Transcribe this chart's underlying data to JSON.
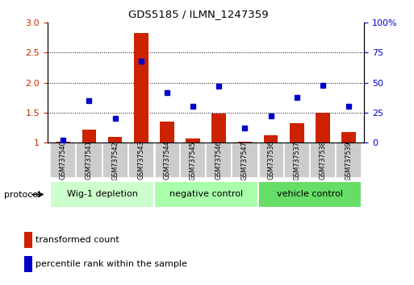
{
  "title": "GDS5185 / ILMN_1247359",
  "samples": [
    "GSM737540",
    "GSM737541",
    "GSM737542",
    "GSM737543",
    "GSM737544",
    "GSM737545",
    "GSM737546",
    "GSM737547",
    "GSM737536",
    "GSM737537",
    "GSM737538",
    "GSM737539"
  ],
  "transformed_count": [
    1.02,
    1.22,
    1.1,
    2.83,
    1.35,
    1.07,
    1.49,
    1.02,
    1.12,
    1.32,
    1.5,
    1.18
  ],
  "percentile_rank": [
    2,
    35,
    20,
    68,
    42,
    30,
    47,
    12,
    22,
    38,
    48,
    30
  ],
  "groups": [
    {
      "label": "Wig-1 depletion",
      "start": 0,
      "end": 4
    },
    {
      "label": "negative control",
      "start": 4,
      "end": 8
    },
    {
      "label": "vehicle control",
      "start": 8,
      "end": 12
    }
  ],
  "group_colors": [
    "#ccffcc",
    "#aaffaa",
    "#66dd66"
  ],
  "bar_color": "#cc2200",
  "dot_color": "#0000cc",
  "sample_box_color": "#cccccc",
  "ylim_left": [
    1.0,
    3.0
  ],
  "ylim_right": [
    0,
    100
  ],
  "yticks_left": [
    1.0,
    1.5,
    2.0,
    2.5,
    3.0
  ],
  "yticks_right": [
    0,
    25,
    50,
    75,
    100
  ],
  "grid_yticks": [
    1.5,
    2.0,
    2.5
  ],
  "legend_red": "transformed count",
  "legend_blue": "percentile rank within the sample",
  "protocol_label": "protocol"
}
